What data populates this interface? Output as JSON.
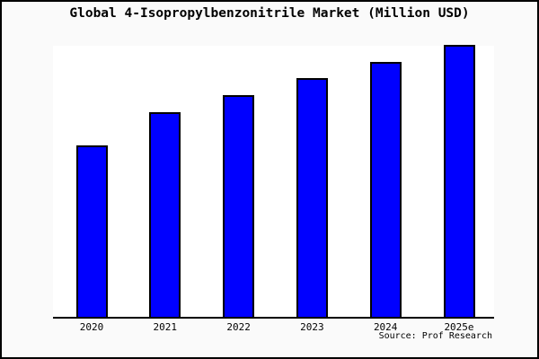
{
  "chart": {
    "title": "Global 4-Isopropylbenzonitrile Market (Million USD)",
    "source": "Source: Prof Research"
  },
  "colors": {
    "bar_fill": "#0000ff",
    "bar_border": "#000000",
    "page_background": "#fafafa",
    "plot_background": "#ffffff",
    "axis_line": "#000000",
    "text": "#000000"
  },
  "chart_data": {
    "type": "bar",
    "title": "Global 4-Isopropylbenzonitrile Market (Million USD)",
    "categories": [
      "2020",
      "2021",
      "2022",
      "2023",
      "2024",
      "2025e"
    ],
    "values": [
      62.8,
      75.1,
      81.4,
      87.7,
      93.7,
      100
    ],
    "value_unit": "relative index estimated from bar heights (no y-axis tick labels shown; 2025e bar = 100)",
    "xlabel": "",
    "ylabel": "",
    "ylim": [
      0,
      100.3
    ],
    "grid": false,
    "legend": false,
    "y_axis_visible": false,
    "annotation": "Source: Prof Research",
    "bar_color": "#0000ff"
  }
}
